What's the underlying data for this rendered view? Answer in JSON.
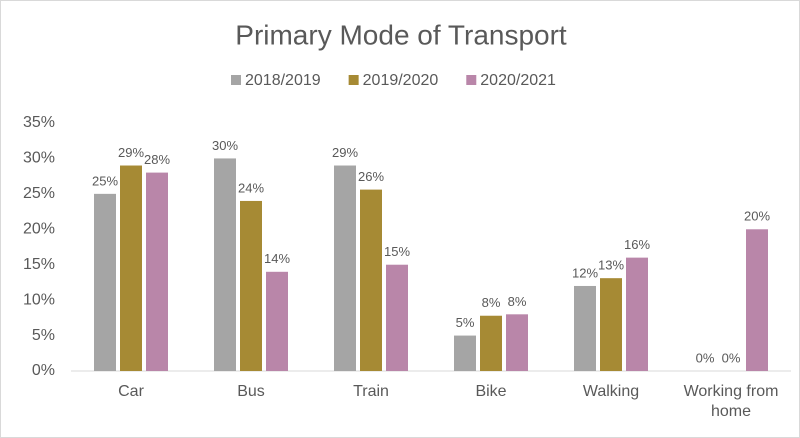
{
  "chart_data": {
    "type": "bar",
    "title": "Primary Mode of Transport",
    "categories": [
      "Car",
      "Bus",
      "Train",
      "Bike",
      "Walking",
      "Working from home"
    ],
    "series": [
      {
        "name": "2018/2019",
        "color": "#a5a5a5",
        "values": [
          25,
          30,
          29,
          5,
          12,
          0
        ],
        "value_labels": [
          "25%",
          "30%",
          "29%",
          "5%",
          "12%",
          "0%"
        ]
      },
      {
        "name": "2019/2020",
        "color": "#a68a34",
        "values": [
          29,
          24,
          25.6,
          7.8,
          13.1,
          0
        ],
        "value_labels": [
          "29%",
          "24%",
          "26%",
          "8%",
          "13%",
          "0%"
        ]
      },
      {
        "name": "2020/2021",
        "color": "#b986a9",
        "values": [
          28,
          14,
          15,
          8,
          16,
          20
        ],
        "value_labels": [
          "28%",
          "14%",
          "15%",
          "8%",
          "16%",
          "20%"
        ]
      }
    ],
    "ylim": [
      0,
      35
    ],
    "yticks": [
      {
        "value": 0,
        "label": "0%"
      },
      {
        "value": 5,
        "label": "5%"
      },
      {
        "value": 10,
        "label": "10%"
      },
      {
        "value": 15,
        "label": "15%"
      },
      {
        "value": 20,
        "label": "20%"
      },
      {
        "value": 25,
        "label": "25%"
      },
      {
        "value": 30,
        "label": "30%"
      },
      {
        "value": 35,
        "label": "35%"
      }
    ],
    "grid": false,
    "legend": "top"
  }
}
